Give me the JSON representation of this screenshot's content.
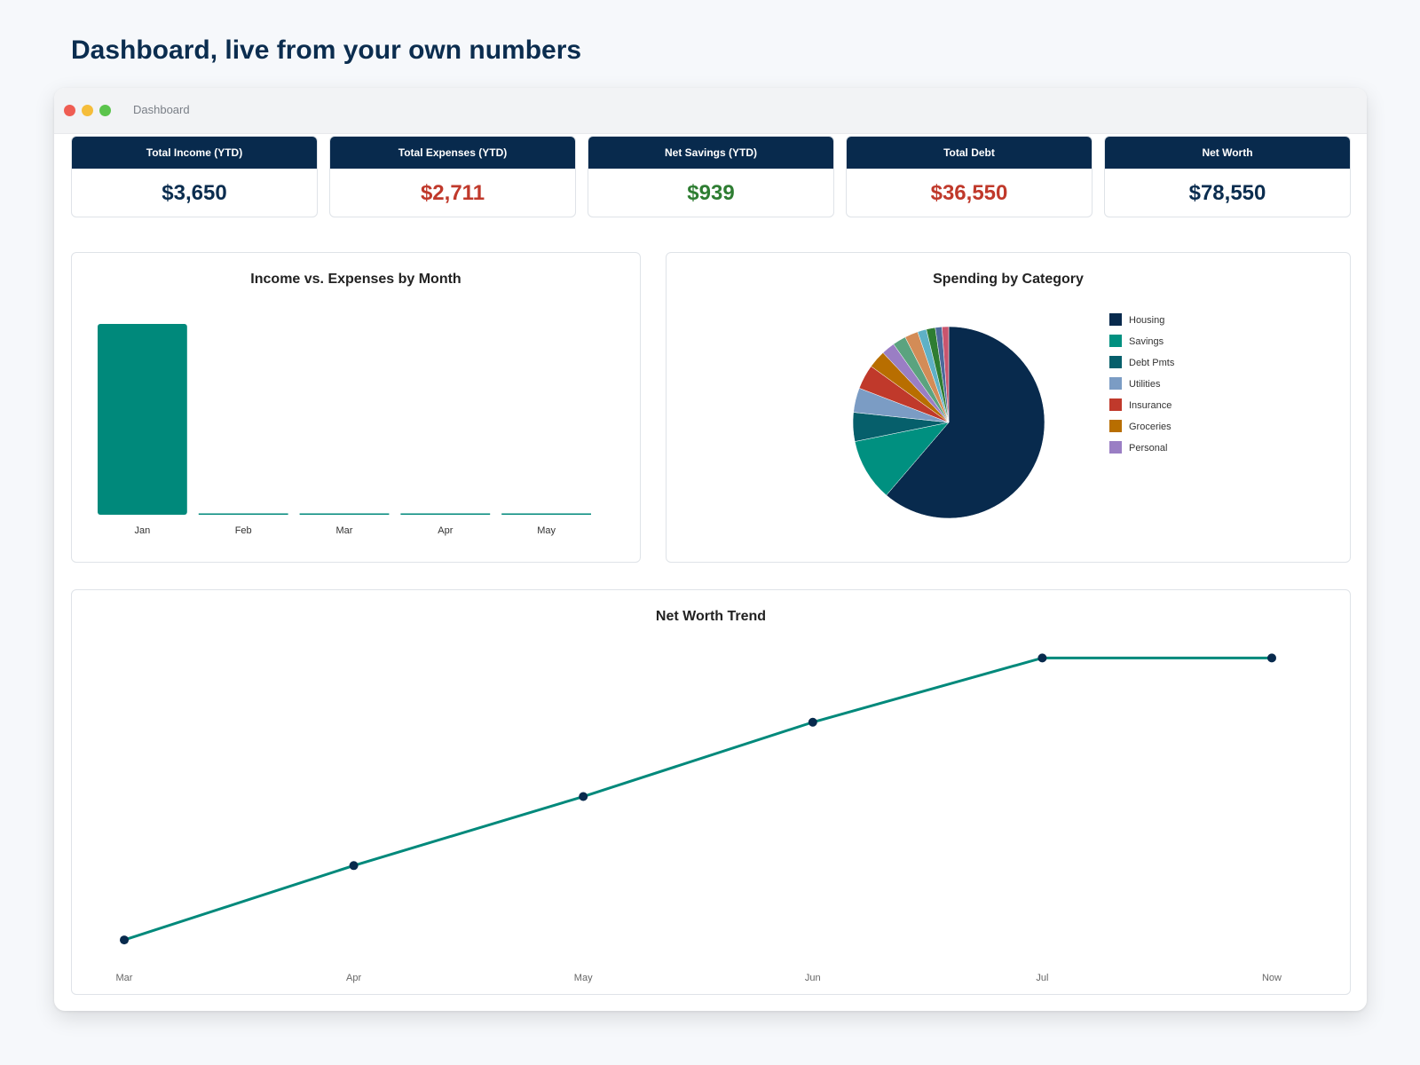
{
  "headline": "Dashboard, live from your own numbers",
  "window": {
    "title": "Dashboard"
  },
  "cards": [
    {
      "label": "Total Income (YTD)",
      "value": "$3,650",
      "color": "#0b2d4f"
    },
    {
      "label": "Total Expenses (YTD)",
      "value": "$2,711",
      "color": "#c0392b"
    },
    {
      "label": "Net Savings (YTD)",
      "value": "$939",
      "color": "#2e7d32"
    },
    {
      "label": "Total Debt",
      "value": "$36,550",
      "color": "#c0392b"
    },
    {
      "label": "Net Worth",
      "value": "$78,550",
      "color": "#0b2d4f"
    }
  ],
  "chart_data": [
    {
      "type": "bar",
      "title": "Income vs. Expenses by Month",
      "categories": [
        "Jan",
        "Feb",
        "Mar",
        "Apr",
        "May"
      ],
      "series": [
        {
          "values": [
            3650,
            0,
            0,
            0,
            0
          ],
          "color": "#00897b"
        }
      ],
      "grid": false
    },
    {
      "type": "pie",
      "title": "Spending by Category",
      "legend_position": "right",
      "labels": [
        "Housing",
        "Savings",
        "Debt Pmts",
        "Utilities",
        "Insurance",
        "Groceries",
        "Personal",
        "",
        "",
        "",
        "",
        "",
        ""
      ],
      "values": [
        1630,
        280,
        130,
        110,
        110,
        80,
        60,
        60,
        60,
        40,
        40,
        30,
        30
      ],
      "colors": [
        "#082a4d",
        "#009080",
        "#065f6b",
        "#7b9cc4",
        "#c0392b",
        "#b86e00",
        "#9a7ec4",
        "#5ba37f",
        "#d38c57",
        "#5fb1c6",
        "#2e7d32",
        "#4c6a9c",
        "#c8556e"
      ]
    },
    {
      "type": "line",
      "title": "Net Worth Trend",
      "x": [
        "Mar",
        "Apr",
        "May",
        "Jun",
        "Jul",
        "Now"
      ],
      "series": [
        {
          "values": [
            52000,
            59000,
            65500,
            72500,
            78550,
            78550
          ],
          "color": "#00897b",
          "marker_color": "#082a4d"
        }
      ],
      "ylim": [
        50000,
        80000
      ],
      "grid": false
    }
  ]
}
